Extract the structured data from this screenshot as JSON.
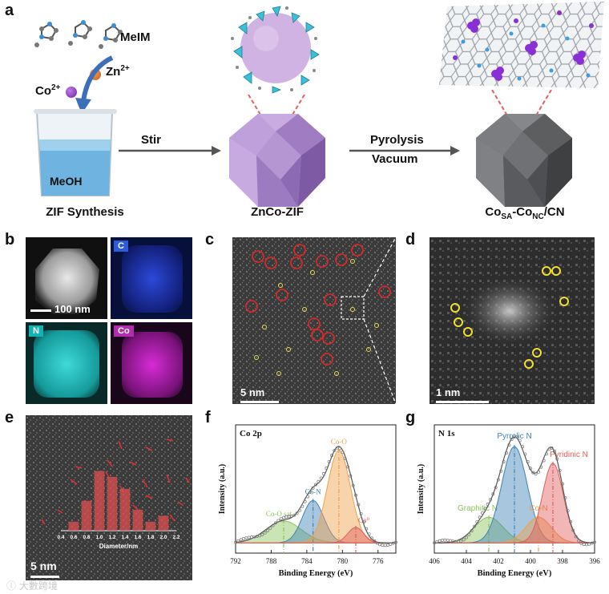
{
  "panel_labels": {
    "a": "a",
    "b": "b",
    "c": "c",
    "d": "d",
    "e": "e",
    "f": "f",
    "g": "g"
  },
  "panel_a": {
    "meim": "MeIM",
    "zn": "Zn",
    "zn_sup": "2+",
    "co": "Co",
    "co_sup": "2+",
    "meoh": "MeOH",
    "stir": "Stir",
    "pyrolysis": "Pyrolysis",
    "vacuum": "Vacuum",
    "caption_left": "ZIF Synthesis",
    "caption_mid": "ZnCo-ZIF",
    "caption_right_main": "Co",
    "caption_right_sub1": "SA",
    "caption_right_dash": "-Co",
    "caption_right_sub2": "NC",
    "caption_right_end": "/CN"
  },
  "panel_b": {
    "scale": "100 nm",
    "tags": [
      "C",
      "N",
      "Co"
    ],
    "tag_colors": [
      "#2f5bd6",
      "#14b3b3",
      "#b02db0"
    ]
  },
  "panel_c": {
    "scale": "5 nm"
  },
  "panel_d": {
    "scale": "1 nm"
  },
  "panel_e": {
    "scale": "5 nm",
    "xlabel": "Diameter/nm",
    "ticks": [
      "0.4",
      "0.6",
      "0.8",
      "1.0",
      "1.2",
      "1.4",
      "1.6",
      "1.8",
      "2.0",
      "2.2"
    ]
  },
  "chart_data": [
    {
      "type": "bar",
      "title": "",
      "xlabel": "Diameter/nm",
      "ylabel": "",
      "categories": [
        "0.4",
        "0.6",
        "0.8",
        "1.0",
        "1.2",
        "1.4",
        "1.6",
        "1.8",
        "2.0",
        "2.2"
      ],
      "values": [
        0,
        1.5,
        5,
        10,
        9,
        7,
        3.5,
        1.5,
        2.5,
        0
      ],
      "bar_color": "#e05050"
    },
    {
      "type": "line",
      "title": "Co 2p",
      "xlabel": "Binding Energy (eV)",
      "ylabel": "Intensity (a.u.)",
      "xlim": [
        792,
        774
      ],
      "x_ticks": [
        "792",
        "788",
        "784",
        "780",
        "776"
      ],
      "series": [
        {
          "name": "Co-O sat",
          "center": 786.6,
          "height": 0.17,
          "width": 2.0,
          "color": "#8cc45a"
        },
        {
          "name": "Co-N",
          "center": 783.3,
          "height": 0.33,
          "width": 1.2,
          "color": "#3e83b6"
        },
        {
          "name": "Co-O",
          "center": 780.4,
          "height": 0.72,
          "width": 1.3,
          "color": "#f0a04a"
        },
        {
          "name": "Co⁰",
          "center": 778.5,
          "height": 0.12,
          "width": 0.9,
          "color": "#e15d5d"
        }
      ]
    },
    {
      "type": "line",
      "title": "N 1s",
      "xlabel": "Binding Energy (eV)",
      "ylabel": "Intensity (a.u.)",
      "xlim": [
        406,
        396
      ],
      "x_ticks": [
        "406",
        "404",
        "402",
        "400",
        "398",
        "396"
      ],
      "series": [
        {
          "name": "Graphitic N",
          "center": 402.6,
          "height": 0.2,
          "width": 0.9,
          "color": "#8cc45a"
        },
        {
          "name": "Pyrrolic N",
          "center": 401.0,
          "height": 0.75,
          "width": 0.8,
          "color": "#3e83b6"
        },
        {
          "name": "Co-N",
          "center": 399.5,
          "height": 0.2,
          "width": 0.8,
          "color": "#f0a04a"
        },
        {
          "name": "Pyridinic N",
          "center": 398.6,
          "height": 0.62,
          "width": 0.65,
          "color": "#e15d5d"
        }
      ]
    }
  ],
  "watermark": "ⓘ 大數跨境"
}
